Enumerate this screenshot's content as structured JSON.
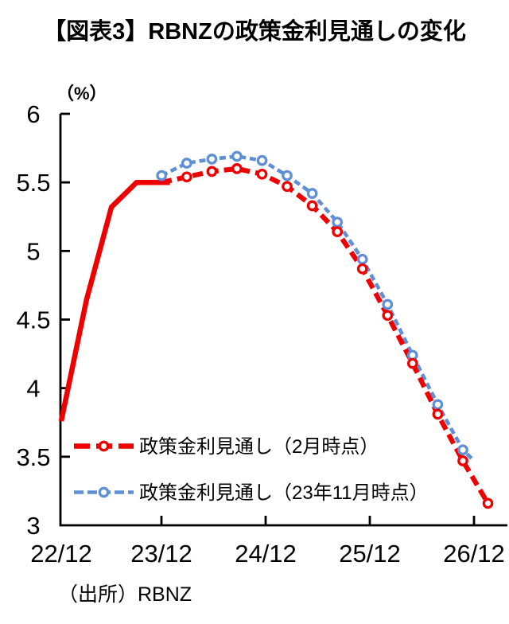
{
  "title": "【図表3】RBNZの政策金利見通しの変化",
  "source": "（出所）RBNZ",
  "chart_data": {
    "type": "line",
    "title": "【図表3】RBNZの政策金利見通しの変化",
    "unit_label": "（%）",
    "source": "（出所）RBNZ",
    "ylim": [
      3,
      6
    ],
    "grid": false,
    "legend_position": "inside-bottom-left",
    "y_ticks": [
      {
        "value": 6,
        "label": "6"
      },
      {
        "value": 5.5,
        "label": "5.5"
      },
      {
        "value": 5,
        "label": "5"
      },
      {
        "value": 4.5,
        "label": "4.5"
      },
      {
        "value": 4,
        "label": "4"
      },
      {
        "value": 3.5,
        "label": "3.5"
      },
      {
        "value": 3,
        "label": "3"
      }
    ],
    "x_tick_labels": [
      "22/12",
      "23/12",
      "24/12",
      "25/12",
      "26/12"
    ],
    "x_quarters": [
      "22/12",
      "23/3",
      "23/6",
      "23/9",
      "23/12",
      "24/3",
      "24/6",
      "24/9",
      "24/12",
      "25/3",
      "25/6",
      "25/9",
      "25/12",
      "26/3",
      "26/6",
      "26/9",
      "26/12",
      "27/3"
    ],
    "series": [
      {
        "id": "policy-rate-nov-forecast",
        "name": "政策金利見通し（23年11月時点）",
        "color": "#5F8FD6",
        "line_width": 4.6,
        "dash": "8 4.8",
        "markers": true,
        "marker_skip_first": false,
        "start_index": 4,
        "values": [
          5.55,
          5.64,
          5.67,
          5.69,
          5.66,
          5.55,
          5.42,
          5.21,
          4.94,
          4.61,
          4.24,
          3.88,
          3.55
        ],
        "tail": [
          16.45,
          3.47
        ]
      },
      {
        "id": "policy-rate-history",
        "color": "#EE0000",
        "line_width": 6.5,
        "dash": null,
        "markers": false,
        "marker_skip_first": false,
        "start_index": 0,
        "values": [
          3.76,
          4.64,
          5.32,
          5.5,
          5.5
        ],
        "tail": [
          4.33,
          5.5
        ]
      },
      {
        "id": "policy-rate-feb-forecast",
        "name": "政策金利見通し（2月時点）",
        "color": "#EE0000",
        "line_width": 6.2,
        "dash": "13 7",
        "markers": true,
        "marker_skip_first": true,
        "start_index": 4,
        "values": [
          5.5,
          5.54,
          5.58,
          5.6,
          5.56,
          5.47,
          5.33,
          5.14,
          4.87,
          4.53,
          4.18,
          3.81,
          3.47,
          3.16
        ],
        "tail": null
      }
    ],
    "legend": [
      {
        "label": "政策金利見通し（2月時点）",
        "color": "#EE0000",
        "dash": "20 8",
        "line_width": 6.5
      },
      {
        "label": "政策金利見通し（23年11月時点）",
        "color": "#5F8FD6",
        "dash": "12 5",
        "line_width": 4.6
      }
    ]
  }
}
